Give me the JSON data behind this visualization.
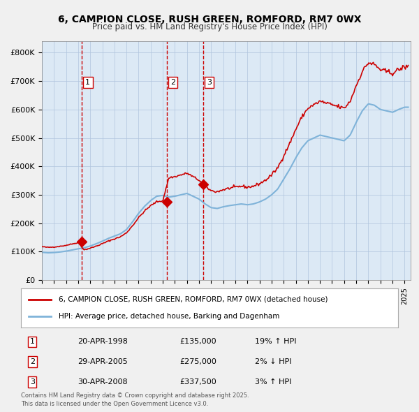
{
  "title_line1": "6, CAMPION CLOSE, RUSH GREEN, ROMFORD, RM7 0WX",
  "title_line2": "Price paid vs. HM Land Registry's House Price Index (HPI)",
  "legend_line1": "6, CAMPION CLOSE, RUSH GREEN, ROMFORD, RM7 0WX (detached house)",
  "legend_line2": "HPI: Average price, detached house, Barking and Dagenham",
  "sale_label1": "1",
  "sale_date1": "20-APR-1998",
  "sale_price1": "£135,000",
  "sale_hpi1": "19% ↑ HPI",
  "sale_year1": 1998.3,
  "sale_value1": 135000,
  "sale_label2": "2",
  "sale_date2": "29-APR-2005",
  "sale_price2": "£275,000",
  "sale_hpi2": "2% ↓ HPI",
  "sale_year2": 2005.33,
  "sale_value2": 275000,
  "sale_label3": "3",
  "sale_date3": "30-APR-2008",
  "sale_price3": "£337,500",
  "sale_hpi3": "3% ↑ HPI",
  "sale_year3": 2008.33,
  "sale_value3": 337500,
  "footer": "Contains HM Land Registry data © Crown copyright and database right 2025.\nThis data is licensed under the Open Government Licence v3.0.",
  "bg_color": "#dce9f5",
  "plot_bg_color": "#dce9f5",
  "line_color_price": "#cc0000",
  "line_color_hpi": "#7fb3d9",
  "vline_color": "#cc0000",
  "grid_color": "#b0c4de",
  "ylim": [
    0,
    840000
  ],
  "xlim_start": 1995.0,
  "xlim_end": 2025.5
}
